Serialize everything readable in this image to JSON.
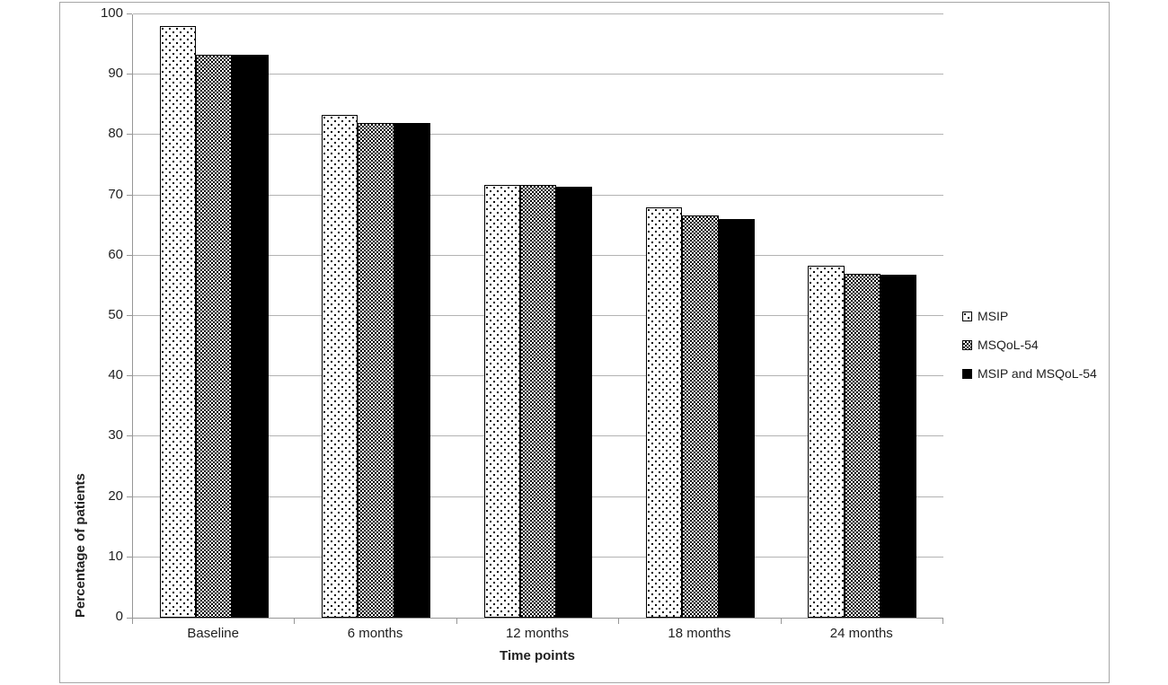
{
  "figure": {
    "frame_border_color": "#a6a6a6",
    "background_color": "#ffffff",
    "gridline_color": "#b3b3b3",
    "axis_line_color": "#969696",
    "text_color": "#1f1f1f",
    "bar_border_color": "#000000"
  },
  "chart_data": {
    "type": "bar",
    "title": "",
    "xlabel": "Time points",
    "ylabel": "Percentage of patients",
    "categories": [
      "Baseline",
      "6 months",
      "12 months",
      "18 months",
      "24 months"
    ],
    "series": [
      {
        "name": "MSIP",
        "pattern": "dots",
        "values": [
          98.0,
          83.3,
          71.7,
          68.0,
          58.3
        ]
      },
      {
        "name": "MSQoL-54",
        "pattern": "checker",
        "values": [
          93.3,
          82.0,
          71.7,
          66.7,
          57.0
        ]
      },
      {
        "name": "MSIP and MSQoL-54",
        "pattern": "solid",
        "values": [
          93.3,
          82.0,
          71.4,
          66.0,
          56.8
        ]
      }
    ],
    "ylim": [
      0,
      100
    ],
    "yticks": [
      0,
      10,
      20,
      30,
      40,
      50,
      60,
      70,
      80,
      90,
      100
    ],
    "grid": true,
    "legend_position": "right-middle"
  }
}
